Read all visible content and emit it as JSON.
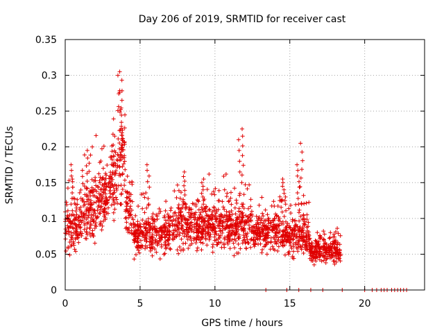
{
  "chart_data": {
    "type": "scatter",
    "title": "Day 206 of 2019, SRMTID for receiver cast",
    "xlabel": "GPS time / hours",
    "ylabel": "SRMTID / TECUs",
    "xlim": [
      0,
      24
    ],
    "ylim": [
      0,
      0.35
    ],
    "xticks": [
      0,
      5,
      10,
      15,
      20
    ],
    "xtick_labels": [
      "0",
      "5",
      "10",
      "15",
      "20"
    ],
    "yticks": [
      0,
      0.05,
      0.1,
      0.15,
      0.2,
      0.25,
      0.3,
      0.35
    ],
    "ytick_labels": [
      "0",
      "0.05",
      "0.1",
      "0.15",
      "0.2",
      "0.25",
      "0.3",
      "0.35"
    ],
    "grid": true,
    "marker": "+",
    "color": "#e00000",
    "series": [
      {
        "name": "SRMTID",
        "description": "dense cloud of + markers",
        "segments": [
          {
            "x_start": 0.0,
            "x_end": 1.0,
            "base": 0.088,
            "spread": 0.03
          },
          {
            "x_start": 1.0,
            "x_end": 2.0,
            "base": 0.105,
            "spread": 0.035
          },
          {
            "x_start": 2.0,
            "x_end": 3.0,
            "base": 0.125,
            "spread": 0.035
          },
          {
            "x_start": 3.0,
            "x_end": 3.5,
            "base": 0.15,
            "spread": 0.04
          },
          {
            "x_start": 3.5,
            "x_end": 4.0,
            "base": 0.19,
            "spread": 0.05
          },
          {
            "x_start": 4.0,
            "x_end": 4.5,
            "base": 0.11,
            "spread": 0.03
          },
          {
            "x_start": 4.5,
            "x_end": 7.0,
            "base": 0.078,
            "spread": 0.025
          },
          {
            "x_start": 7.0,
            "x_end": 10.0,
            "base": 0.09,
            "spread": 0.028
          },
          {
            "x_start": 10.0,
            "x_end": 12.5,
            "base": 0.088,
            "spread": 0.03
          },
          {
            "x_start": 12.5,
            "x_end": 15.0,
            "base": 0.078,
            "spread": 0.022
          },
          {
            "x_start": 15.0,
            "x_end": 16.3,
            "base": 0.075,
            "spread": 0.025
          },
          {
            "x_start": 16.3,
            "x_end": 18.4,
            "base": 0.055,
            "spread": 0.015
          }
        ],
        "peaks": [
          {
            "x": 0.5,
            "y": 0.175
          },
          {
            "x": 1.5,
            "y": 0.195
          },
          {
            "x": 1.7,
            "y": 0.2
          },
          {
            "x": 2.6,
            "y": 0.17
          },
          {
            "x": 3.2,
            "y": 0.215
          },
          {
            "x": 3.6,
            "y": 0.3
          },
          {
            "x": 3.7,
            "y": 0.305
          },
          {
            "x": 3.8,
            "y": 0.265
          },
          {
            "x": 5.5,
            "y": 0.175
          },
          {
            "x": 8.0,
            "y": 0.165
          },
          {
            "x": 9.2,
            "y": 0.155
          },
          {
            "x": 11.7,
            "y": 0.225
          },
          {
            "x": 11.9,
            "y": 0.215
          },
          {
            "x": 14.6,
            "y": 0.155
          },
          {
            "x": 15.8,
            "y": 0.205
          },
          {
            "x": 15.6,
            "y": 0.175
          }
        ],
        "zeros": [
          13.4,
          14.8,
          15.6,
          16.4,
          17.2,
          18.5,
          20.0,
          20.5,
          20.8,
          21.1,
          21.3,
          21.5,
          21.8,
          22.0,
          22.2,
          22.4,
          22.6,
          22.8
        ]
      }
    ]
  }
}
